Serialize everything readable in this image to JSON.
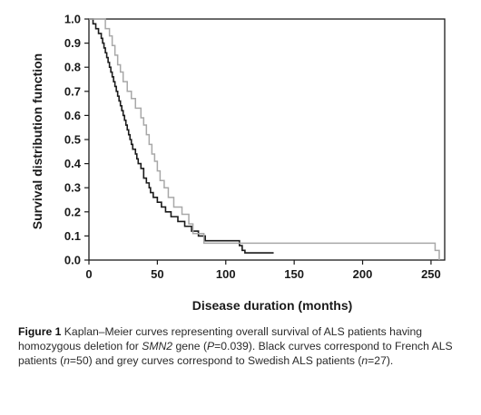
{
  "chart_data": {
    "type": "line",
    "xlabel": "Disease duration (months)",
    "ylabel": "Survival distribution function",
    "xlim": [
      0,
      260
    ],
    "ylim": [
      0,
      1.0
    ],
    "xticks": [
      "0",
      "50",
      "100",
      "150",
      "200",
      "250"
    ],
    "xtick_values": [
      0,
      50,
      100,
      150,
      200,
      250
    ],
    "yticks": [
      "0.0",
      "0.1",
      "0.2",
      "0.3",
      "0.4",
      "0.5",
      "0.6",
      "0.7",
      "0.8",
      "0.9",
      "1.0"
    ],
    "ytick_values": [
      0.0,
      0.1,
      0.2,
      0.3,
      0.4,
      0.5,
      0.6,
      0.7,
      0.8,
      0.9,
      1.0
    ],
    "grid": false,
    "series": [
      {
        "color": "#1a1a1a",
        "points": [
          [
            0,
            1.0
          ],
          [
            3,
            0.98
          ],
          [
            5,
            0.96
          ],
          [
            7,
            0.94
          ],
          [
            9,
            0.92
          ],
          [
            10,
            0.9
          ],
          [
            11,
            0.88
          ],
          [
            12,
            0.86
          ],
          [
            13,
            0.84
          ],
          [
            14,
            0.82
          ],
          [
            15,
            0.8
          ],
          [
            16,
            0.78
          ],
          [
            17,
            0.76
          ],
          [
            18,
            0.74
          ],
          [
            19,
            0.72
          ],
          [
            20,
            0.7
          ],
          [
            21,
            0.68
          ],
          [
            22,
            0.66
          ],
          [
            23,
            0.64
          ],
          [
            24,
            0.62
          ],
          [
            25,
            0.6
          ],
          [
            26,
            0.58
          ],
          [
            27,
            0.56
          ],
          [
            28,
            0.54
          ],
          [
            29,
            0.52
          ],
          [
            30,
            0.5
          ],
          [
            31,
            0.48
          ],
          [
            32,
            0.46
          ],
          [
            34,
            0.44
          ],
          [
            35,
            0.42
          ],
          [
            36,
            0.4
          ],
          [
            38,
            0.38
          ],
          [
            40,
            0.34
          ],
          [
            42,
            0.32
          ],
          [
            44,
            0.3
          ],
          [
            45,
            0.28
          ],
          [
            47,
            0.26
          ],
          [
            50,
            0.24
          ],
          [
            53,
            0.22
          ],
          [
            56,
            0.2
          ],
          [
            60,
            0.18
          ],
          [
            65,
            0.16
          ],
          [
            70,
            0.14
          ],
          [
            75,
            0.12
          ],
          [
            80,
            0.1
          ],
          [
            85,
            0.08
          ],
          [
            110,
            0.06
          ],
          [
            112,
            0.04
          ],
          [
            114,
            0.03
          ],
          [
            135,
            0.03
          ]
        ]
      },
      {
        "color": "#a8a8a8",
        "points": [
          [
            0,
            1.0
          ],
          [
            12,
            0.96
          ],
          [
            15,
            0.93
          ],
          [
            17,
            0.89
          ],
          [
            19,
            0.85
          ],
          [
            21,
            0.81
          ],
          [
            23,
            0.78
          ],
          [
            25,
            0.74
          ],
          [
            28,
            0.7
          ],
          [
            31,
            0.67
          ],
          [
            34,
            0.63
          ],
          [
            38,
            0.59
          ],
          [
            40,
            0.56
          ],
          [
            42,
            0.52
          ],
          [
            44,
            0.48
          ],
          [
            46,
            0.44
          ],
          [
            48,
            0.41
          ],
          [
            50,
            0.37
          ],
          [
            52,
            0.33
          ],
          [
            55,
            0.3
          ],
          [
            58,
            0.26
          ],
          [
            62,
            0.22
          ],
          [
            68,
            0.19
          ],
          [
            73,
            0.15
          ],
          [
            76,
            0.11
          ],
          [
            80,
            0.11
          ],
          [
            84,
            0.07
          ],
          [
            252,
            0.07
          ],
          [
            253,
            0.04
          ],
          [
            256,
            0.0
          ]
        ]
      }
    ]
  },
  "caption": {
    "figure_label": "Figure 1",
    "text_before_gene": "Kaplan–Meier curves representing overall survival of ALS patients having homozygous deletion for",
    "gene": "SMN2",
    "text_gene_to_p": "gene (",
    "p_symbol": "P",
    "p_value": "=0.039). Black curves correspond to French ALS patients (",
    "n_symbol_1": "n",
    "n_value_1": "=50) and grey curves correspond to Swedish ALS patients (",
    "n_symbol_2": "n",
    "n_value_2": "=27)."
  }
}
